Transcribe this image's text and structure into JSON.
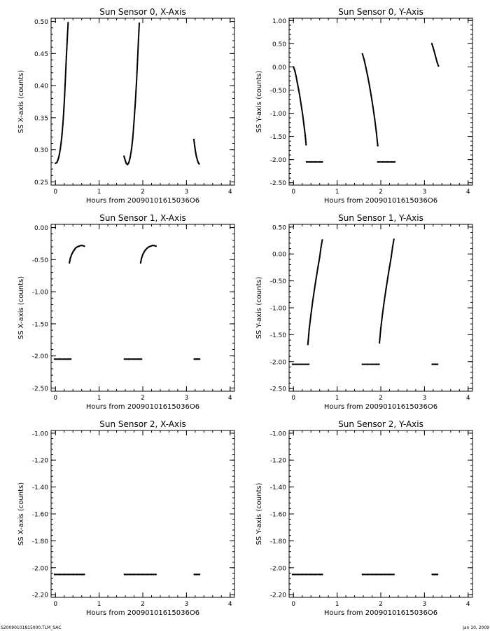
{
  "footer": {
    "left": "S20090101815000.TLM_SAC",
    "right": "Jan 10, 2009"
  },
  "chart_data": [
    {
      "type": "scatter",
      "title": "Sun Sensor 0, X-Axis",
      "xlabel": "Hours from 20090101615036O6",
      "ylabel": "SS X-axis (counts)",
      "xlim": [
        -0.1,
        4.1
      ],
      "ylim": [
        0.245,
        0.505
      ],
      "xticks": [
        "0",
        "1",
        "2",
        "3",
        "4"
      ],
      "yticks": [
        "0.25",
        "0.30",
        "0.35",
        "0.40",
        "0.45",
        "0.50"
      ],
      "series": [
        {
          "x": [
            0.0,
            0.03,
            0.05,
            0.07,
            0.09,
            0.11,
            0.13,
            0.15,
            0.17,
            0.19,
            0.21,
            0.23,
            0.25,
            0.27,
            0.29
          ],
          "y": [
            0.279,
            0.28,
            0.283,
            0.287,
            0.293,
            0.301,
            0.311,
            0.324,
            0.34,
            0.36,
            0.385,
            0.415,
            0.445,
            0.472,
            0.498
          ]
        },
        {
          "x": [
            1.57,
            1.6,
            1.62,
            1.65,
            1.68,
            1.71,
            1.74,
            1.77,
            1.8,
            1.83,
            1.86,
            1.88,
            1.9,
            1.92
          ],
          "y": [
            0.29,
            0.283,
            0.279,
            0.277,
            0.28,
            0.288,
            0.3,
            0.318,
            0.345,
            0.375,
            0.41,
            0.44,
            0.47,
            0.497
          ]
        },
        {
          "x": [
            3.17,
            3.19,
            3.21,
            3.23,
            3.25,
            3.27,
            3.29
          ],
          "y": [
            0.316,
            0.305,
            0.296,
            0.289,
            0.284,
            0.28,
            0.278
          ]
        }
      ]
    },
    {
      "type": "scatter",
      "title": "Sun Sensor 0, Y-Axis",
      "xlabel": "Hours from 20090101615036O6",
      "ylabel": "SS Y-axis (counts)",
      "xlim": [
        -0.1,
        4.1
      ],
      "ylim": [
        -2.55,
        1.05
      ],
      "xticks": [
        "0",
        "1",
        "2",
        "3",
        "4"
      ],
      "yticks": [
        "-2.50",
        "-2.00",
        "-1.50",
        "-1.00",
        "-0.50",
        "0.00",
        "0.50",
        "1.00"
      ],
      "series": [
        {
          "x": [
            0.0,
            0.03,
            0.06,
            0.09,
            0.12,
            0.15,
            0.18,
            0.21,
            0.24,
            0.27,
            0.29
          ],
          "y": [
            0.0,
            -0.08,
            -0.2,
            -0.35,
            -0.5,
            -0.66,
            -0.84,
            -1.03,
            -1.25,
            -1.48,
            -1.68
          ]
        },
        {
          "x": [
            0.3,
            0.4,
            0.5,
            0.6,
            0.66
          ],
          "y": [
            -2.05,
            -2.05,
            -2.05,
            -2.05,
            -2.05
          ]
        },
        {
          "x": [
            1.58,
            1.62,
            1.66,
            1.7,
            1.74,
            1.78,
            1.82,
            1.86,
            1.9,
            1.93
          ],
          "y": [
            0.28,
            0.15,
            -0.02,
            -0.2,
            -0.4,
            -0.62,
            -0.86,
            -1.12,
            -1.42,
            -1.7
          ]
        },
        {
          "x": [
            1.93,
            2.05,
            2.15,
            2.25,
            2.32
          ],
          "y": [
            -2.05,
            -2.05,
            -2.05,
            -2.05,
            -2.05
          ]
        },
        {
          "x": [
            3.17,
            3.21,
            3.25,
            3.29,
            3.32
          ],
          "y": [
            0.5,
            0.38,
            0.24,
            0.1,
            0.02
          ]
        }
      ]
    },
    {
      "type": "scatter",
      "title": "Sun Sensor 1, X-Axis",
      "xlabel": "Hours from 20090101615036O6",
      "ylabel": "SS X-axis (counts)",
      "xlim": [
        -0.1,
        4.1
      ],
      "ylim": [
        -2.55,
        0.05
      ],
      "xticks": [
        "0",
        "1",
        "2",
        "3",
        "4"
      ],
      "yticks": [
        "-2.50",
        "-2.00",
        "-1.50",
        "-1.00",
        "-0.50",
        "0.00"
      ],
      "series": [
        {
          "x": [
            -0.02,
            0.1,
            0.2,
            0.3,
            0.35
          ],
          "y": [
            -2.05,
            -2.05,
            -2.05,
            -2.05,
            -2.05
          ]
        },
        {
          "x": [
            0.32,
            0.34,
            0.37,
            0.4,
            0.43,
            0.46,
            0.5,
            0.54,
            0.58,
            0.62,
            0.66
          ],
          "y": [
            -0.55,
            -0.48,
            -0.42,
            -0.38,
            -0.35,
            -0.32,
            -0.3,
            -0.29,
            -0.28,
            -0.28,
            -0.29
          ]
        },
        {
          "x": [
            1.58,
            1.7,
            1.8,
            1.9,
            1.97
          ],
          "y": [
            -2.05,
            -2.05,
            -2.05,
            -2.05,
            -2.05
          ]
        },
        {
          "x": [
            1.95,
            1.97,
            2.0,
            2.03,
            2.06,
            2.1,
            2.14,
            2.18,
            2.22,
            2.26,
            2.3
          ],
          "y": [
            -0.55,
            -0.48,
            -0.42,
            -0.38,
            -0.35,
            -0.32,
            -0.3,
            -0.29,
            -0.28,
            -0.28,
            -0.29
          ]
        },
        {
          "x": [
            3.18,
            3.22,
            3.26,
            3.3
          ],
          "y": [
            -2.05,
            -2.05,
            -2.05,
            -2.05
          ]
        }
      ]
    },
    {
      "type": "scatter",
      "title": "Sun Sensor 1, Y-Axis",
      "xlabel": "Hours from 20090101615036O6",
      "ylabel": "SS Y-axis (counts)",
      "xlim": [
        -0.1,
        4.1
      ],
      "ylim": [
        -2.55,
        0.55
      ],
      "xticks": [
        "0",
        "1",
        "2",
        "3",
        "4"
      ],
      "yticks": [
        "-2.50",
        "-2.00",
        "-1.50",
        "-1.00",
        "-0.50",
        "0.00",
        "0.50"
      ],
      "series": [
        {
          "x": [
            -0.02,
            0.1,
            0.2,
            0.3,
            0.35
          ],
          "y": [
            -2.05,
            -2.05,
            -2.05,
            -2.05,
            -2.05
          ]
        },
        {
          "x": [
            0.33,
            0.36,
            0.4,
            0.44,
            0.48,
            0.52,
            0.56,
            0.6,
            0.63,
            0.66
          ],
          "y": [
            -1.68,
            -1.4,
            -1.13,
            -0.88,
            -0.66,
            -0.45,
            -0.25,
            -0.06,
            0.12,
            0.26
          ]
        },
        {
          "x": [
            1.58,
            1.7,
            1.8,
            1.9,
            1.96
          ],
          "y": [
            -2.05,
            -2.05,
            -2.05,
            -2.05,
            -2.05
          ]
        },
        {
          "x": [
            1.97,
            2.0,
            2.04,
            2.08,
            2.12,
            2.16,
            2.2,
            2.24,
            2.27,
            2.3
          ],
          "y": [
            -1.65,
            -1.38,
            -1.11,
            -0.87,
            -0.65,
            -0.44,
            -0.24,
            -0.05,
            0.13,
            0.27
          ]
        },
        {
          "x": [
            3.18,
            3.22,
            3.26,
            3.3
          ],
          "y": [
            -2.05,
            -2.05,
            -2.05,
            -2.05
          ]
        }
      ]
    },
    {
      "type": "scatter",
      "title": "Sun Sensor 2, X-Axis",
      "xlabel": "Hours from 20090101615036O6",
      "ylabel": "SS X-axis (counts)",
      "xlim": [
        -0.1,
        4.1
      ],
      "ylim": [
        -2.22,
        -0.98
      ],
      "xticks": [
        "0",
        "1",
        "2",
        "3",
        "4"
      ],
      "yticks": [
        "-2.20",
        "-2.00",
        "-1.80",
        "-1.60",
        "-1.40",
        "-1.20",
        "-1.00"
      ],
      "series": [
        {
          "x": [
            -0.02,
            0.1,
            0.2,
            0.3,
            0.4,
            0.5,
            0.6,
            0.66
          ],
          "y": [
            -2.05,
            -2.05,
            -2.05,
            -2.05,
            -2.05,
            -2.05,
            -2.05,
            -2.05
          ]
        },
        {
          "x": [
            1.58,
            1.7,
            1.8,
            1.9,
            2.0,
            2.1,
            2.2,
            2.3
          ],
          "y": [
            -2.05,
            -2.05,
            -2.05,
            -2.05,
            -2.05,
            -2.05,
            -2.05,
            -2.05
          ]
        },
        {
          "x": [
            3.18,
            3.22,
            3.26,
            3.3
          ],
          "y": [
            -2.05,
            -2.05,
            -2.05,
            -2.05
          ]
        }
      ]
    },
    {
      "type": "scatter",
      "title": "Sun Sensor 2, Y-Axis",
      "xlabel": "Hours from 20090101615036O6",
      "ylabel": "SS Y-axis (counts)",
      "xlim": [
        -0.1,
        4.1
      ],
      "ylim": [
        -2.22,
        -0.98
      ],
      "xticks": [
        "0",
        "1",
        "2",
        "3",
        "4"
      ],
      "yticks": [
        "-2.20",
        "-2.00",
        "-1.80",
        "-1.60",
        "-1.40",
        "-1.20",
        "-1.00"
      ],
      "series": [
        {
          "x": [
            -0.02,
            0.1,
            0.2,
            0.3,
            0.4,
            0.5,
            0.6,
            0.66
          ],
          "y": [
            -2.05,
            -2.05,
            -2.05,
            -2.05,
            -2.05,
            -2.05,
            -2.05,
            -2.05
          ]
        },
        {
          "x": [
            1.58,
            1.7,
            1.8,
            1.9,
            2.0,
            2.1,
            2.2,
            2.3
          ],
          "y": [
            -2.05,
            -2.05,
            -2.05,
            -2.05,
            -2.05,
            -2.05,
            -2.05,
            -2.05
          ]
        },
        {
          "x": [
            3.18,
            3.22,
            3.26,
            3.3
          ],
          "y": [
            -2.05,
            -2.05,
            -2.05,
            -2.05
          ]
        }
      ]
    }
  ]
}
